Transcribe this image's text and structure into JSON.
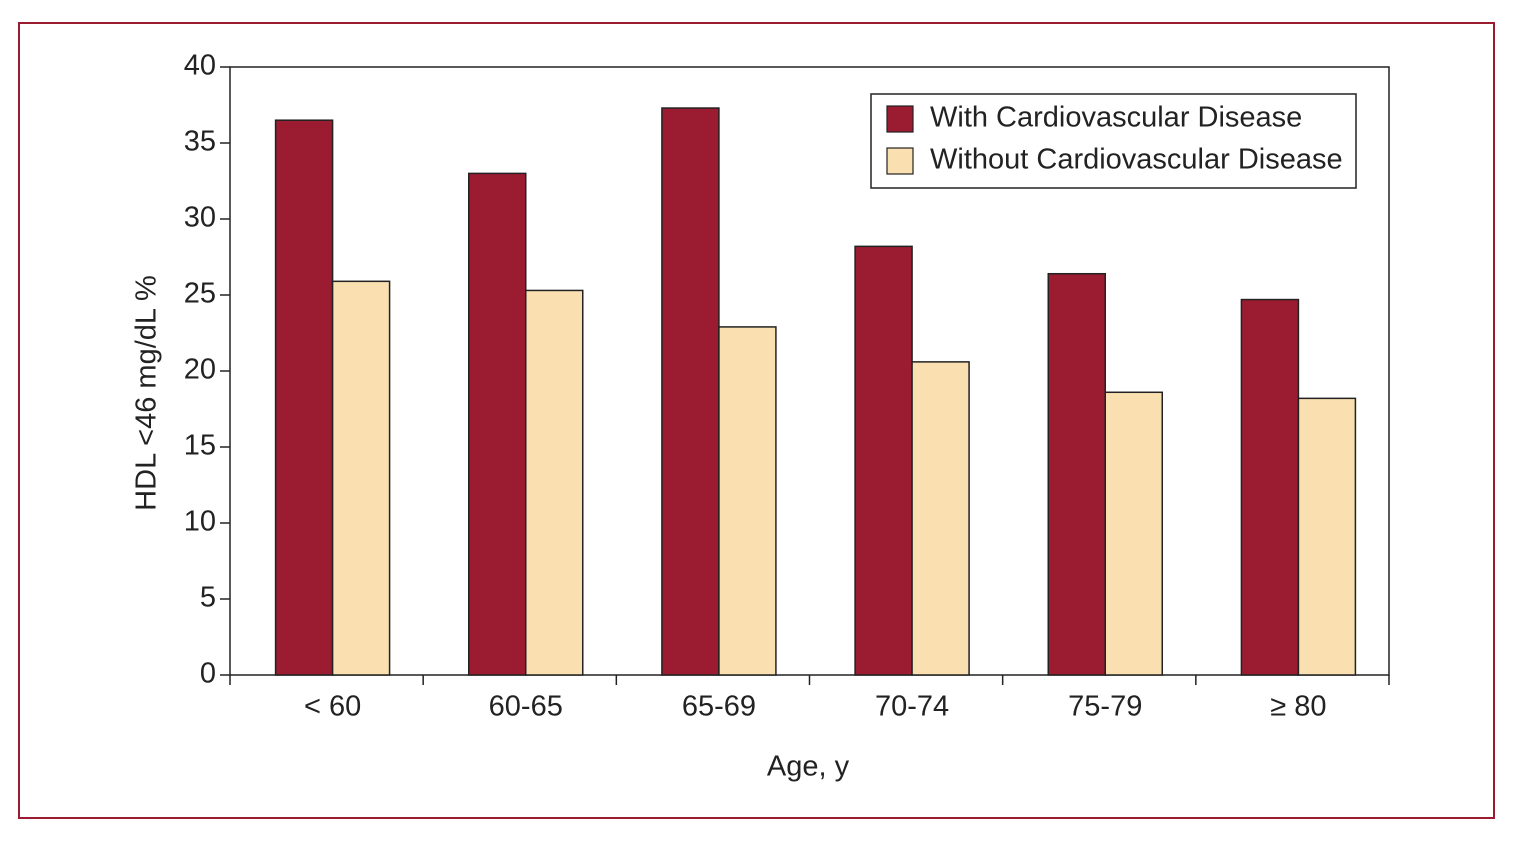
{
  "chart_data": {
    "type": "bar",
    "x_label": "Age, y",
    "y_label": "HDL <46 mg/dL %",
    "categories": [
      "< 60",
      "60-65",
      "65-69",
      "70-74",
      "75-79",
      "≥ 80"
    ],
    "series": [
      {
        "name": "With Cardiovascular Disease",
        "color": "#9b1c31",
        "values": [
          36.5,
          33.0,
          37.3,
          28.2,
          26.4,
          24.7
        ]
      },
      {
        "name": "Without Cardiovascular Disease",
        "color": "#fadfb0",
        "values": [
          25.9,
          25.3,
          22.9,
          20.6,
          18.6,
          18.2
        ]
      }
    ],
    "ylim": [
      0,
      40
    ],
    "yticks": [
      0,
      5,
      10,
      15,
      20,
      25,
      30,
      35,
      40
    ],
    "grid": false,
    "legend": "top-right"
  }
}
